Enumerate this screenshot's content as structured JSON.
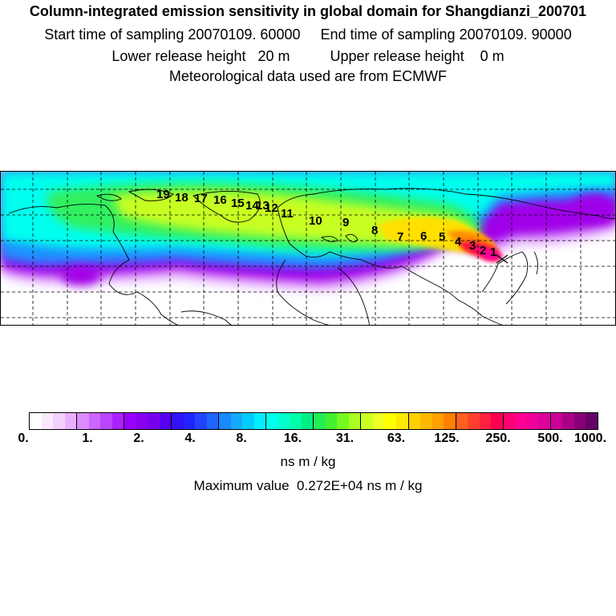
{
  "header": {
    "title": "Column-integrated emission sensitivity in global domain for Shangdianzi_200701",
    "sampling_line": "Start time of sampling 20070109. 60000     End time of sampling 20070109. 90000",
    "release_line": "Lower release height   20 m          Upper release height    0 m",
    "met_line": "Meteorological data used are from ECMWF"
  },
  "map": {
    "track_labels": [
      "1",
      "2",
      "3",
      "4",
      "5",
      "6",
      "7",
      "8",
      "9",
      "10",
      "11",
      "12",
      "13",
      "14",
      "15",
      "16",
      "17",
      "18",
      "19"
    ],
    "colors": {
      "white": "#ffffff",
      "light_purple": "#e8b8ff",
      "purple": "#a000e8",
      "blue": "#1e90ff",
      "cyan": "#00ffee",
      "green": "#30f060",
      "yellowgreen": "#c8ff20",
      "yellow": "#ffe000",
      "orange": "#ff8c00",
      "red": "#ff1040",
      "magenta": "#ff00a0"
    }
  },
  "legend": {
    "ticks": [
      "0.",
      "1.",
      "2.",
      "4.",
      "8.",
      "16.",
      "31.",
      "63.",
      "125.",
      "250.",
      "500.",
      "1000."
    ],
    "swatches": [
      "#ffffff",
      "#fbe8ff",
      "#f4d0ff",
      "#eab0ff",
      "#dc8cff",
      "#cc66ff",
      "#bb44ff",
      "#aa22ff",
      "#9900ff",
      "#8800ee",
      "#7700ee",
      "#5500f0",
      "#3311f5",
      "#2222ff",
      "#2244ff",
      "#1f66ff",
      "#1a88ff",
      "#14aaff",
      "#00ccff",
      "#00eeff",
      "#00ffee",
      "#00ffcc",
      "#00ffaa",
      "#00f080",
      "#22ee55",
      "#44f030",
      "#77f820",
      "#aaff22",
      "#ccff22",
      "#eeff22",
      "#ffff00",
      "#ffe800",
      "#ffd000",
      "#ffb800",
      "#ffa000",
      "#ff8000",
      "#ff6020",
      "#ff4030",
      "#ff2040",
      "#ff0050",
      "#ff0070",
      "#ff0090",
      "#ee0099",
      "#dd0099",
      "#cc0099",
      "#aa0088",
      "#880077",
      "#660066"
    ],
    "unit": "ns m / kg",
    "max_line": "Maximum value  0.272E+04 ns m / kg"
  }
}
